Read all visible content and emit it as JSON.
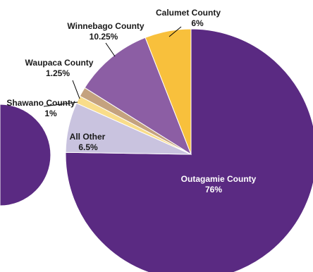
{
  "chart_data": {
    "type": "pie",
    "title": "",
    "slices": [
      {
        "label": "Outagamie County",
        "value_label": "76%",
        "value": 76,
        "color": "#5a2a82"
      },
      {
        "label": "All Other",
        "value_label": "6.5%",
        "value": 6.5,
        "color": "#c9c3df"
      },
      {
        "label": "Shawano County",
        "value_label": "1%",
        "value": 1,
        "color": "#f9dd8a"
      },
      {
        "label": "Waupaca County",
        "value_label": "1.25%",
        "value": 1.25,
        "color": "#c4a27f"
      },
      {
        "label": "Winnebago County",
        "value_label": "10.25%",
        "value": 10.25,
        "color": "#8c5ea4"
      },
      {
        "label": "Calumet County",
        "value_label": "6%",
        "value": 6,
        "color": "#f8c03c"
      }
    ],
    "adjacent_partial_pie_color": "#5a2a82"
  }
}
